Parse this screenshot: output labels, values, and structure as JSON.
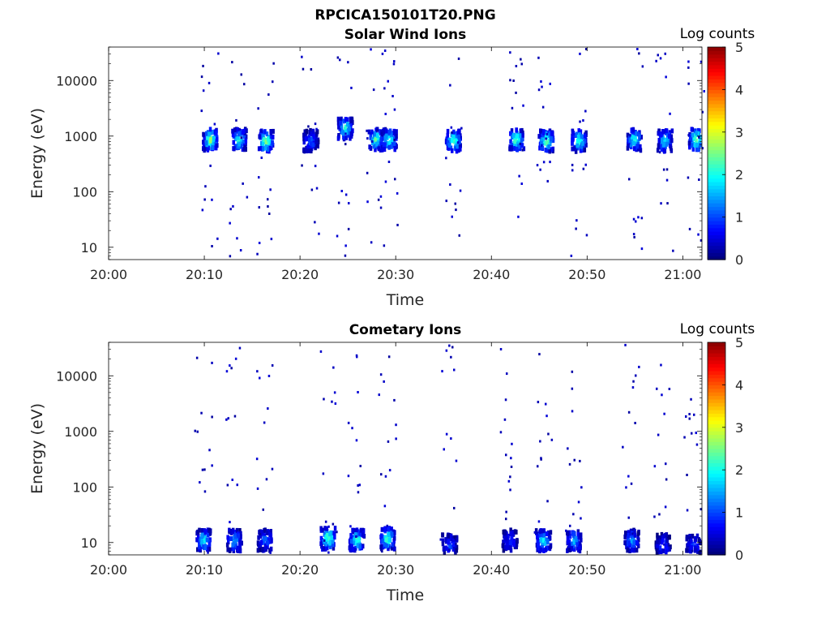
{
  "figure": {
    "title": "RPCICA150101T20.PNG"
  },
  "colormap": {
    "stops": [
      "#00007f",
      "#0000ff",
      "#007fff",
      "#00ffff",
      "#7fff7f",
      "#ffff00",
      "#ff7f00",
      "#ff0000",
      "#7f0000"
    ]
  },
  "chart_data": [
    {
      "type": "heatmap",
      "title": "Solar Wind Ions",
      "xlabel": "Time",
      "ylabel": "Energy (eV)",
      "colorbar_label": "Log counts",
      "xlim": [
        "20:00",
        "21:02"
      ],
      "x_ticks": [
        "20:00",
        "20:10",
        "20:20",
        "20:30",
        "20:40",
        "20:50",
        "21:00"
      ],
      "y_scale": "log",
      "ylim": [
        6,
        40000
      ],
      "y_ticks": [
        10,
        100,
        1000,
        10000
      ],
      "y_tick_labels": [
        "10",
        "100",
        "1000",
        "10000"
      ],
      "clim": [
        0,
        5
      ],
      "colorbar_ticks": [
        "0",
        "1",
        "2",
        "3",
        "4",
        "5"
      ],
      "bursts": [
        {
          "t": 10.5,
          "peak_energy_eV": 950,
          "peak_log_counts": 2.8
        },
        {
          "t": 13.5,
          "peak_energy_eV": 950,
          "peak_log_counts": 2.2
        },
        {
          "t": 16.3,
          "peak_energy_eV": 900,
          "peak_log_counts": 2.7
        },
        {
          "t": 21.0,
          "peak_energy_eV": 900,
          "peak_log_counts": 1.2
        },
        {
          "t": 24.6,
          "peak_energy_eV": 1500,
          "peak_log_counts": 2.2
        },
        {
          "t": 27.8,
          "peak_energy_eV": 950,
          "peak_log_counts": 2.4
        },
        {
          "t": 29.2,
          "peak_energy_eV": 950,
          "peak_log_counts": 2.4
        },
        {
          "t": 35.9,
          "peak_energy_eV": 900,
          "peak_log_counts": 2.5
        },
        {
          "t": 42.5,
          "peak_energy_eV": 950,
          "peak_log_counts": 2.6
        },
        {
          "t": 45.6,
          "peak_energy_eV": 900,
          "peak_log_counts": 2.7
        },
        {
          "t": 49.0,
          "peak_energy_eV": 900,
          "peak_log_counts": 2.3
        },
        {
          "t": 54.8,
          "peak_energy_eV": 950,
          "peak_log_counts": 2.3
        },
        {
          "t": 58.0,
          "peak_energy_eV": 900,
          "peak_log_counts": 2.0
        },
        {
          "t": 61.3,
          "peak_energy_eV": 950,
          "peak_log_counts": 2.8
        }
      ]
    },
    {
      "type": "heatmap",
      "title": "Cometary Ions",
      "xlabel": "Time",
      "ylabel": "Energy (eV)",
      "colorbar_label": "Log counts",
      "xlim": [
        "20:00",
        "21:02"
      ],
      "x_ticks": [
        "20:00",
        "20:10",
        "20:20",
        "20:30",
        "20:40",
        "20:50",
        "21:00"
      ],
      "y_scale": "log",
      "ylim": [
        6,
        40000
      ],
      "y_ticks": [
        10,
        100,
        1000,
        10000
      ],
      "y_tick_labels": [
        "10",
        "100",
        "1000",
        "10000"
      ],
      "clim": [
        0,
        5
      ],
      "colorbar_ticks": [
        "0",
        "1",
        "2",
        "3",
        "4",
        "5"
      ],
      "bursts": [
        {
          "t": 9.8,
          "peak_energy_eV": 12,
          "peak_log_counts": 2.0
        },
        {
          "t": 13.0,
          "peak_energy_eV": 12,
          "peak_log_counts": 1.6
        },
        {
          "t": 16.2,
          "peak_energy_eV": 12,
          "peak_log_counts": 1.2
        },
        {
          "t": 22.8,
          "peak_energy_eV": 13,
          "peak_log_counts": 2.6
        },
        {
          "t": 25.8,
          "peak_energy_eV": 12,
          "peak_log_counts": 2.3
        },
        {
          "t": 29.0,
          "peak_energy_eV": 13,
          "peak_log_counts": 2.4
        },
        {
          "t": 35.5,
          "peak_energy_eV": 10,
          "peak_log_counts": 1.0
        },
        {
          "t": 41.8,
          "peak_energy_eV": 12,
          "peak_log_counts": 0.9
        },
        {
          "t": 45.3,
          "peak_energy_eV": 12,
          "peak_log_counts": 2.0
        },
        {
          "t": 48.5,
          "peak_energy_eV": 12,
          "peak_log_counts": 1.6
        },
        {
          "t": 54.5,
          "peak_energy_eV": 12,
          "peak_log_counts": 1.4
        },
        {
          "t": 57.8,
          "peak_energy_eV": 10,
          "peak_log_counts": 1.0
        },
        {
          "t": 61.0,
          "peak_energy_eV": 10,
          "peak_log_counts": 0.9
        }
      ]
    }
  ]
}
